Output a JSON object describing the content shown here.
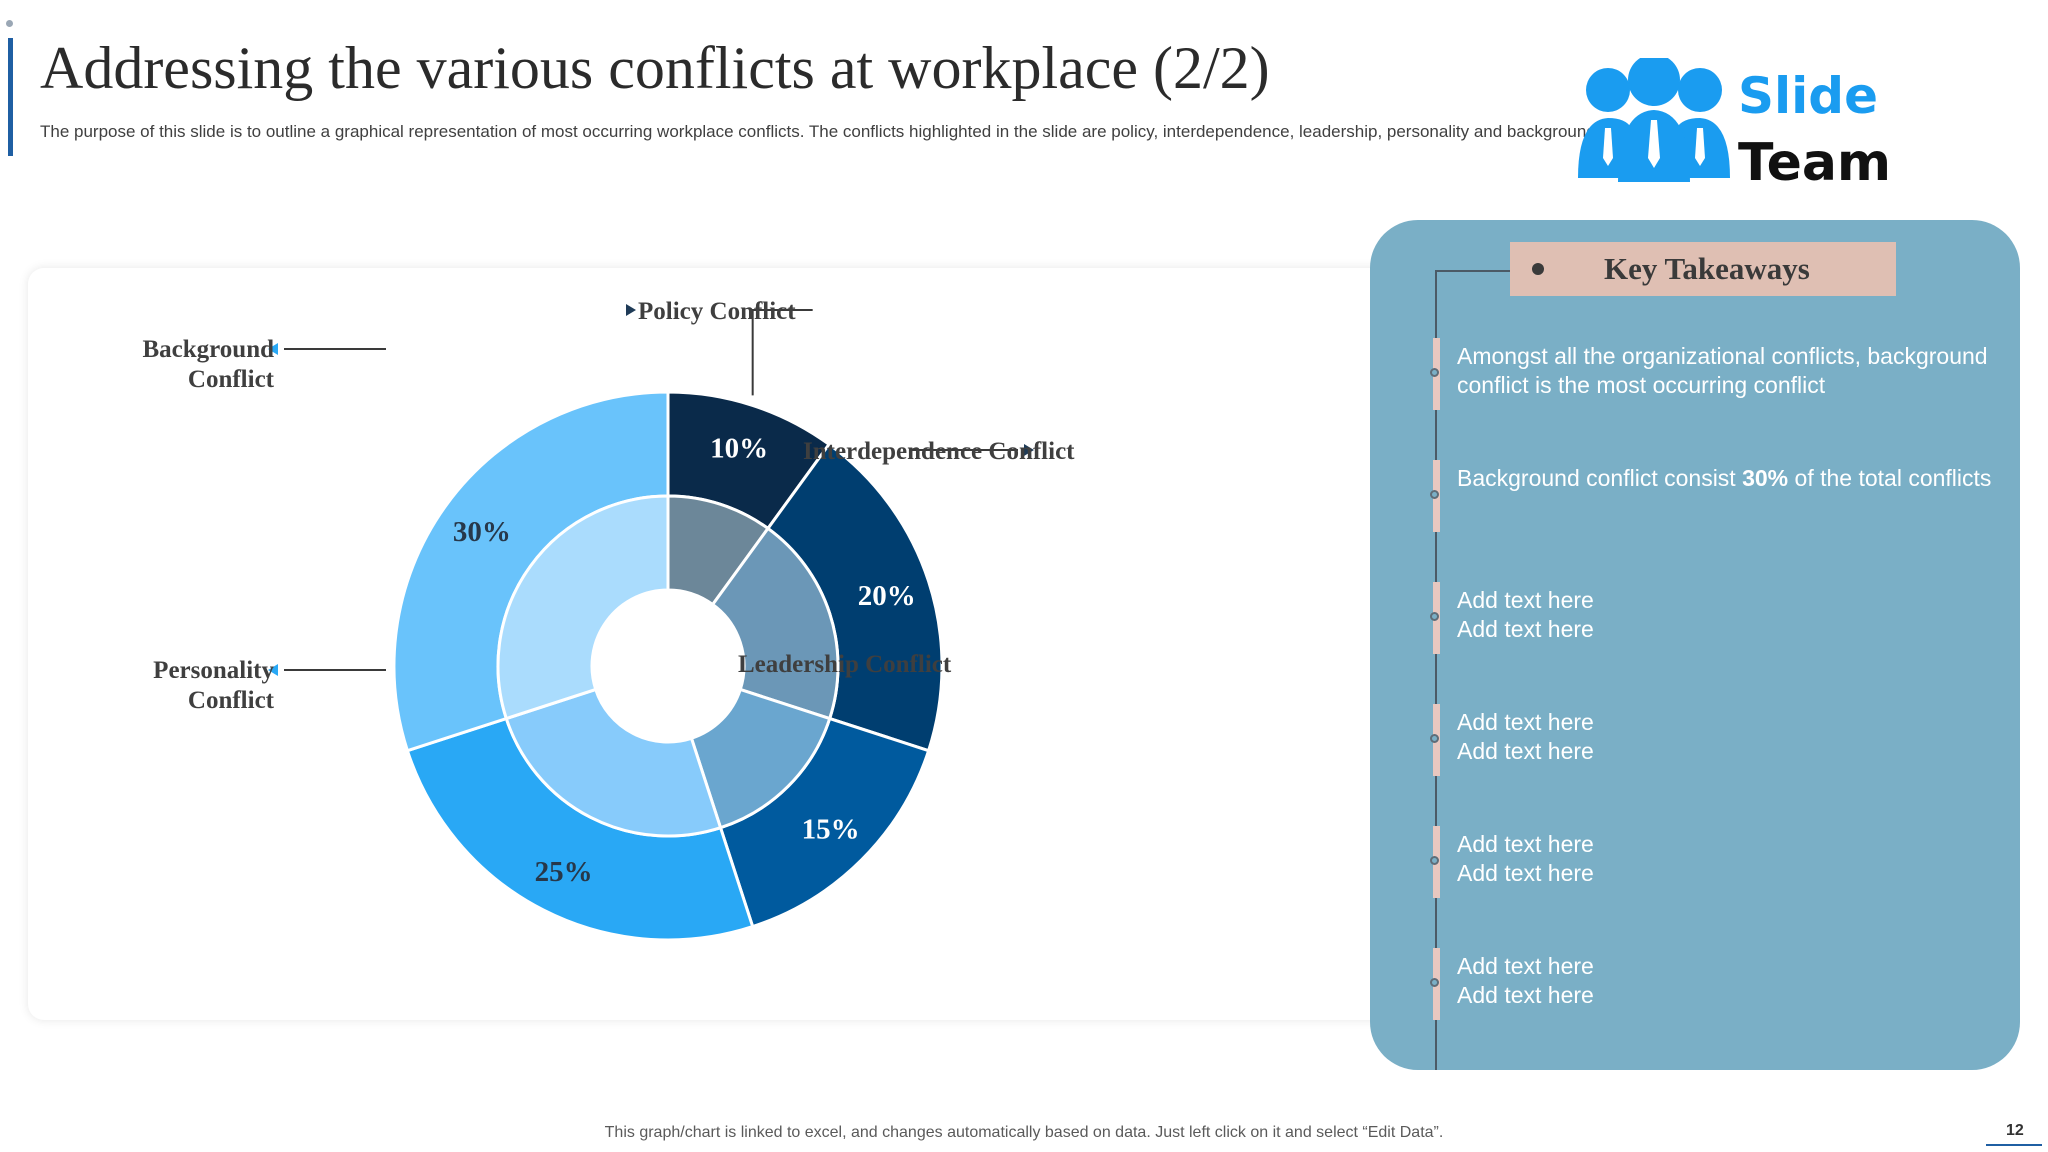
{
  "header": {
    "title": "Addressing the various conflicts at workplace (2/2)",
    "subtitle": "The purpose of this slide is to outline a graphical representation of most occurring workplace conflicts. The conflicts highlighted in the slide are policy, interdependence, leadership, personality and background."
  },
  "logo": {
    "line1": "Slide",
    "line2": "Team",
    "color": "#1a9cf0"
  },
  "chart_data": {
    "type": "pie",
    "categories": [
      "Policy Conflict",
      "Interdependence Conflict",
      "Leadership Conflict",
      "Personality Conflict",
      "Background Conflict"
    ],
    "values": [
      10,
      20,
      15,
      25,
      30
    ],
    "value_labels": [
      "10%",
      "20%",
      "15%",
      "25%",
      "30%"
    ],
    "legend_lines": [
      [
        "Policy Conflict"
      ],
      [
        "Interdependence Conflict"
      ],
      [
        "Leadership Conflict"
      ],
      [
        "Personality",
        "Conflict"
      ],
      [
        "Background",
        "Conflict"
      ]
    ],
    "colors": [
      "#0a2a4a",
      "#003e70",
      "#005a9e",
      "#29a8f5",
      "#69c3fb"
    ],
    "inner_colors": [
      "#6c8799",
      "#6b97b7",
      "#6aa6cf",
      "#87cbfb",
      "#aadcfd"
    ],
    "label_colors": [
      "#ffffff",
      "#ffffff",
      "#ffffff",
      "#27384a",
      "#27384a"
    ],
    "style": "nested-donut"
  },
  "takeaways": {
    "title": "Key Takeaways",
    "items": [
      {
        "pre": "Amongst all the organizational conflicts, background conflict is the most occurring conflict",
        "bold": "",
        "post": ""
      },
      {
        "pre": "Background conflict consist ",
        "bold": "30%",
        "post": " of the total conflicts"
      },
      {
        "pre": "Add text here Add text here",
        "bold": "",
        "post": ""
      },
      {
        "pre": "Add text here Add text here",
        "bold": "",
        "post": ""
      },
      {
        "pre": "Add text here Add text here",
        "bold": "",
        "post": ""
      },
      {
        "pre": "Add text here Add text here",
        "bold": "",
        "post": ""
      }
    ]
  },
  "footer": {
    "note": "This graph/chart is linked to excel, and changes automatically based on data. Just left click on it and select “Edit Data”.",
    "page": "12"
  }
}
